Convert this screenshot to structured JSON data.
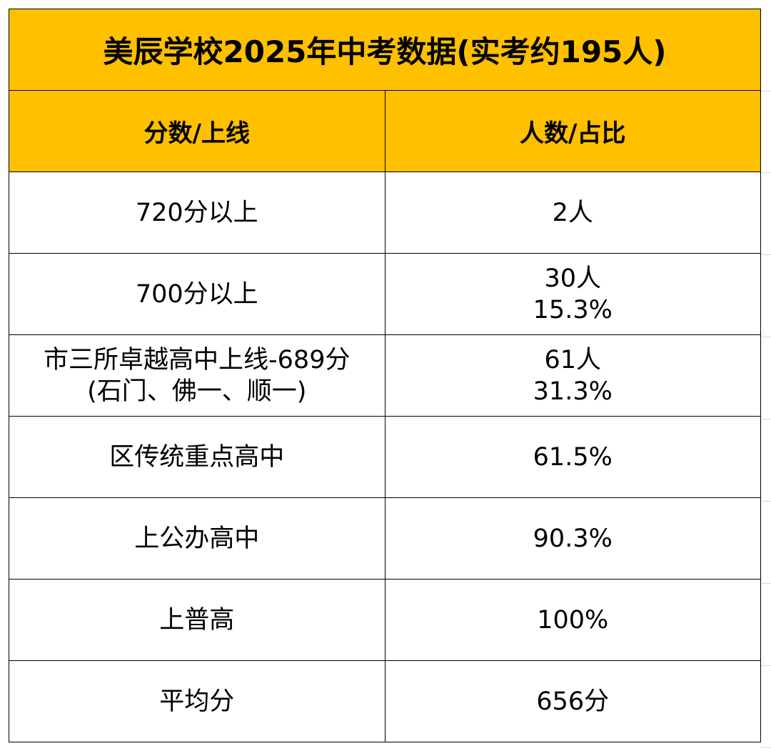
{
  "table": {
    "title": "美辰学校2025年中考数据(实考约195人)",
    "header": [
      "分数/上线",
      "人数/占比"
    ],
    "rows": [
      [
        [
          "720分以上"
        ],
        [
          "2人"
        ]
      ],
      [
        [
          "700分以上"
        ],
        [
          "30人",
          "15.3%"
        ]
      ],
      [
        [
          "市三所卓越高中上线-689分",
          "(石门、佛一、顺一)"
        ],
        [
          "61人",
          "31.3%"
        ]
      ],
      [
        [
          "区传统重点高中"
        ],
        [
          "61.5%"
        ]
      ],
      [
        [
          "上公办高中"
        ],
        [
          "90.3%"
        ]
      ],
      [
        [
          "上普高"
        ],
        [
          "100%"
        ]
      ],
      [
        [
          "平均分"
        ],
        [
          "656分"
        ]
      ]
    ]
  }
}
